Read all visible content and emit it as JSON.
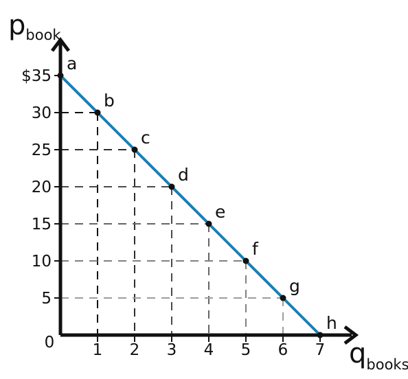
{
  "chart_data": {
    "type": "line",
    "x": [
      0,
      1,
      2,
      3,
      4,
      5,
      6,
      7
    ],
    "series": [
      {
        "values": [
          35,
          30,
          25,
          20,
          15,
          10,
          5,
          0
        ]
      }
    ],
    "point_labels": [
      "a",
      "b",
      "c",
      "d",
      "e",
      "f",
      "g",
      "h"
    ],
    "xlabel": {
      "main": "q",
      "sub": "books"
    },
    "ylabel": {
      "main": "p",
      "sub": "book"
    },
    "x_ticks": [
      "1",
      "2",
      "3",
      "4",
      "5",
      "6",
      "7"
    ],
    "y_ticks": [
      "5",
      "10",
      "15",
      "20",
      "25",
      "30",
      "$35"
    ],
    "y_tick_values": [
      5,
      10,
      15,
      20,
      25,
      30,
      35
    ],
    "origin_label": "0",
    "xlim": [
      0,
      7
    ],
    "ylim": [
      0,
      35
    ],
    "grid": false,
    "guide_lines": "dashed",
    "colors": {
      "line": "#1a7fb5",
      "axes": "#111111",
      "points": "#111111"
    }
  }
}
